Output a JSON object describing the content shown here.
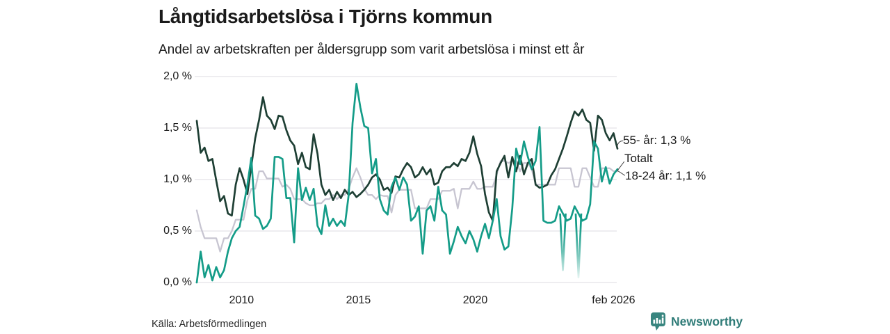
{
  "title": "Långtidsarbetslösa i Tjörns kommun",
  "subtitle": "Andel av arbetskraften per åldersgrupp som varit arbetslösa i minst ett år",
  "source": "Källa: Arbetsförmedlingen",
  "branding": {
    "name": "Newsworthy",
    "icon": "bar-chart-speech-bubble-icon",
    "icon_color": "#38857f",
    "text_color": "#2e7b77"
  },
  "annotations": [
    {
      "label": "55- år: 1,3 %",
      "series": "55- år"
    },
    {
      "label": "Totalt",
      "series": "Totalt"
    },
    {
      "label": "18-24 år: 1,1 %",
      "series": "18-24 år"
    }
  ],
  "colors": {
    "grid": "#e4e2e6",
    "text": "#1a1a1a",
    "leader": "#3a3a3a"
  },
  "chart_data": {
    "type": "line",
    "title": "Långtidsarbetslösa i Tjörns kommun",
    "unit": "%",
    "x_start": "feb 2008",
    "x_end": "feb 2026",
    "x_step_months": 2,
    "ylim": [
      0,
      2.0
    ],
    "grid": true,
    "legend_position": "end-of-line-labels",
    "yticks": [
      {
        "label": "2,0 %",
        "value": 2.0
      },
      {
        "label": "1,5 %",
        "value": 1.5
      },
      {
        "label": "1,0 %",
        "value": 1.0
      },
      {
        "label": "0,5 %",
        "value": 0.5
      },
      {
        "label": "0,0 %",
        "value": 0.0
      }
    ],
    "xticks": [
      {
        "label": "2010",
        "pos": 11.5
      },
      {
        "label": "2015",
        "pos": 41.5
      },
      {
        "label": "2020",
        "pos": 71.5
      },
      {
        "label": "feb 2026",
        "pos": 107
      }
    ],
    "series": [
      {
        "name": "Totalt",
        "color": "#c7c5d1",
        "width": 2.3,
        "latest_label": "Totalt",
        "values": [
          0.7,
          0.54,
          0.43,
          0.43,
          0.43,
          0.43,
          0.3,
          0.43,
          0.43,
          0.5,
          0.61,
          0.61,
          0.61,
          0.8,
          0.91,
          0.91,
          1.08,
          1.08,
          1.01,
          1.01,
          1.01,
          1.01,
          0.93,
          0.95,
          0.91,
          0.81,
          0.81,
          0.81,
          0.77,
          0.75,
          0.75,
          0.77,
          0.77,
          0.81,
          0.81,
          0.85,
          0.81,
          0.85,
          0.85,
          0.91,
          1.02,
          1.11,
          1.02,
          0.91,
          0.85,
          0.85,
          0.81,
          0.85,
          0.84,
          0.84,
          0.68,
          0.85,
          0.9,
          0.9,
          0.9,
          0.9,
          0.72,
          0.72,
          0.72,
          0.72,
          0.81,
          0.81,
          0.81,
          0.89,
          0.89,
          0.89,
          0.91,
          0.72,
          0.91,
          0.91,
          0.91,
          0.98,
          0.91,
          0.91,
          0.93,
          0.93,
          0.93,
          1.05,
          1.18,
          1.18,
          1.16,
          1.18,
          1.18,
          1.08,
          1.16,
          1.16,
          1.1,
          0.95,
          0.95,
          0.95,
          0.95,
          0.95,
          0.95,
          1.11,
          1.11,
          1.11,
          1.11,
          0.93,
          0.93,
          1.11,
          1.11,
          1.02,
          0.93,
          0.93,
          1.11,
          1.11,
          1.11,
          1.08,
          1.08
        ]
      },
      {
        "name": "55- år",
        "color": "#1e3f34",
        "width": 2.7,
        "latest_label": "55- år: 1,3 %",
        "values": [
          1.57,
          1.26,
          1.31,
          1.18,
          1.2,
          0.99,
          0.79,
          0.84,
          0.67,
          0.65,
          0.95,
          1.11,
          1.0,
          0.86,
          1.13,
          1.4,
          1.58,
          1.8,
          1.62,
          1.58,
          1.49,
          1.62,
          1.61,
          1.48,
          1.38,
          1.33,
          1.15,
          1.26,
          1.12,
          1.1,
          1.44,
          1.25,
          0.95,
          0.85,
          0.9,
          0.8,
          0.88,
          0.82,
          0.9,
          0.85,
          0.88,
          0.83,
          0.86,
          0.9,
          0.95,
          1.02,
          1.05,
          1.0,
          0.9,
          0.92,
          0.87,
          1.03,
          1.02,
          1.1,
          1.16,
          1.12,
          1.02,
          1.05,
          1.12,
          1.05,
          1.1,
          0.95,
          0.97,
          1.08,
          1.12,
          1.12,
          1.16,
          1.13,
          1.2,
          1.18,
          1.26,
          1.42,
          1.25,
          1.13,
          0.86,
          0.68,
          0.6,
          1.08,
          1.16,
          1.23,
          1.02,
          1.22,
          1.08,
          1.23,
          1.05,
          1.16,
          1.2,
          0.95,
          0.92,
          0.93,
          0.95,
          1.04,
          1.1,
          1.2,
          1.3,
          1.42,
          1.55,
          1.66,
          1.62,
          1.68,
          1.58,
          1.55,
          1.28,
          1.62,
          1.58,
          1.45,
          1.38,
          1.45,
          1.3
        ]
      },
      {
        "name": "18-24 år",
        "color": "#149c88",
        "width": 2.7,
        "latest_label": "18-24 år: 1,1 %",
        "fade_indices": [
          94,
          98
        ],
        "values": [
          0.0,
          0.3,
          0.05,
          0.17,
          0.02,
          0.15,
          0.05,
          0.12,
          0.3,
          0.43,
          0.5,
          0.54,
          0.74,
          0.95,
          1.21,
          0.65,
          0.62,
          0.52,
          0.55,
          0.62,
          1.22,
          1.22,
          1.2,
          0.82,
          0.82,
          0.39,
          1.11,
          0.8,
          0.92,
          0.8,
          0.91,
          0.55,
          0.47,
          0.75,
          0.55,
          0.62,
          0.55,
          0.6,
          0.55,
          0.85,
          1.55,
          1.93,
          1.7,
          1.52,
          1.5,
          1.06,
          1.2,
          0.81,
          0.7,
          0.66,
          0.93,
          1.02,
          0.9,
          1.02,
          0.95,
          0.6,
          0.64,
          0.74,
          0.28,
          0.7,
          0.74,
          0.6,
          0.93,
          0.7,
          0.66,
          0.28,
          0.4,
          0.54,
          0.45,
          0.38,
          0.5,
          0.42,
          0.3,
          0.45,
          0.57,
          0.43,
          0.6,
          0.81,
          0.45,
          0.32,
          0.35,
          0.72,
          1.3,
          1.15,
          1.37,
          1.22,
          1.1,
          1.18,
          1.51,
          0.6,
          0.58,
          0.58,
          0.6,
          0.74,
          0.12,
          0.6,
          0.62,
          0.74,
          0.05,
          0.6,
          0.62,
          0.76,
          1.37,
          1.3,
          0.98,
          1.12,
          0.96,
          1.05,
          1.1
        ]
      }
    ]
  }
}
